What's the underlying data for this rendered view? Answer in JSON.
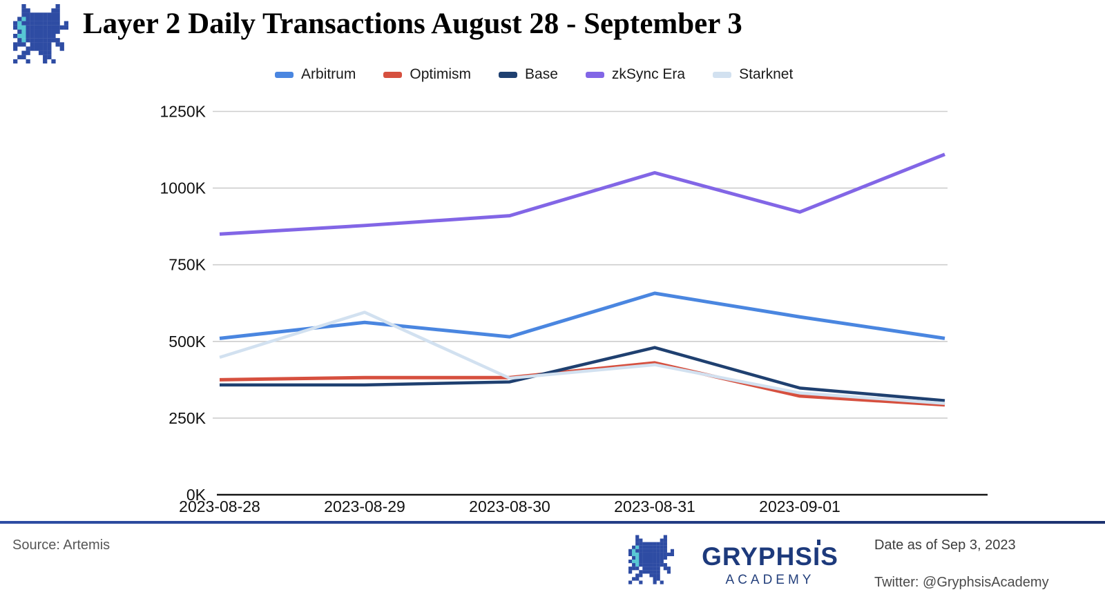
{
  "header": {
    "title": "Layer 2 Daily Transactions August 28 - September 3",
    "logo_icon": "gryphsis-dragon-logo"
  },
  "legend": [
    {
      "label": "Arbitrum",
      "color": "#4a86e0"
    },
    {
      "label": "Optimism",
      "color": "#d6503f"
    },
    {
      "label": "Base",
      "color": "#1f4070"
    },
    {
      "label": "zkSync Era",
      "color": "#8266e6"
    },
    {
      "label": "Starknet",
      "color": "#d2e1f0"
    }
  ],
  "chart_data": {
    "type": "line",
    "title": "Layer 2 Daily Transactions August 28 - September 3",
    "values_unit": "thousands of transactions (K)",
    "x_labels": [
      "2023-08-28",
      "2023-08-29",
      "2023-08-30",
      "2023-08-31",
      "2023-09-01",
      ""
    ],
    "y_tick_labels": [
      "0K",
      "250K",
      "500K",
      "750K",
      "1000K",
      "1250K"
    ],
    "ylim": [
      0,
      1250
    ],
    "grid": true,
    "legend_position": "top",
    "series": [
      {
        "name": "Arbitrum",
        "color": "#4a86e0",
        "width": 5,
        "values": [
          510,
          562,
          515,
          657,
          580,
          510
        ]
      },
      {
        "name": "Optimism",
        "color": "#d6503f",
        "width": 5,
        "values": [
          375,
          382,
          382,
          430,
          322,
          293
        ]
      },
      {
        "name": "Base",
        "color": "#1f4070",
        "width": 4.5,
        "values": [
          358,
          358,
          368,
          480,
          348,
          307
        ]
      },
      {
        "name": "zkSync Era",
        "color": "#8266e6",
        "width": 5,
        "values": [
          850,
          878,
          910,
          1050,
          922,
          1110
        ]
      },
      {
        "name": "Starknet",
        "color": "#d2e1f0",
        "width": 4.5,
        "values": [
          448,
          595,
          380,
          424,
          332,
          298
        ]
      }
    ],
    "notes": "sixth x tick is unlabeled; Starknet drawn on top of Optimism after 2023-08-30"
  },
  "footer": {
    "source": "Source: Artemis",
    "brand": "GRYPHSIS",
    "brand_sub": "ACADEMY",
    "brand_icon": "gryphsis-dragon-logo",
    "date_text": "Date as of  Sep 3, 2023",
    "twitter_text": "Twitter: @GryphsisAcademy"
  }
}
